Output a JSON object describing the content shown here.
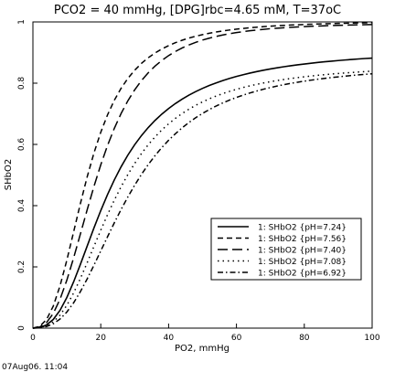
{
  "chart_data": {
    "type": "line",
    "title": "PCO2 = 40 mmHg, [DPG]rbc=4.65 mM, T=37oC",
    "xlabel": "PO2, mmHg",
    "ylabel": "SHbO2",
    "xlim": [
      0,
      100
    ],
    "ylim": [
      0,
      1
    ],
    "x_ticks": [
      "0",
      "20",
      "40",
      "60",
      "80",
      "100"
    ],
    "y_ticks": [
      "0",
      "0.2",
      "0.4",
      "0.6",
      "0.8",
      "1"
    ],
    "grid": false,
    "legend_position": "lower-right",
    "x": [
      0,
      2,
      4,
      6,
      8,
      10,
      12,
      14,
      16,
      18,
      20,
      22,
      24,
      26,
      28,
      30,
      32,
      34,
      36,
      38,
      40,
      42,
      44,
      46,
      48,
      50,
      52,
      54,
      56,
      58,
      60,
      62,
      64,
      66,
      68,
      70,
      72,
      74,
      76,
      78,
      80,
      82,
      84,
      86,
      88,
      90,
      92,
      94,
      96,
      98,
      100
    ],
    "series": [
      {
        "name": "1: SHbO2 {pH=7.24}",
        "dash": "solid",
        "values": [
          0.0,
          0.002,
          0.0103,
          0.0283,
          0.0583,
          0.1,
          0.1511,
          0.2083,
          0.2681,
          0.3274,
          0.3839,
          0.4364,
          0.4842,
          0.5271,
          0.5653,
          0.5991,
          0.6289,
          0.6552,
          0.6784,
          0.699,
          0.7172,
          0.7335,
          0.748,
          0.7609,
          0.7726,
          0.783,
          0.7924,
          0.8009,
          0.8086,
          0.8156,
          0.8219,
          0.8277,
          0.833,
          0.8379,
          0.8423,
          0.8464,
          0.8502,
          0.8537,
          0.8569,
          0.8599,
          0.8626,
          0.8652,
          0.8676,
          0.8699,
          0.8719,
          0.8739,
          0.8757,
          0.8775,
          0.8791,
          0.8806,
          0.882
        ]
      },
      {
        "name": "1: SHbO2 {pH=7.56}",
        "dash": "6,4",
        "values": [
          0.0,
          0.0057,
          0.0278,
          0.0719,
          0.1384,
          0.2219,
          0.3142,
          0.407,
          0.4942,
          0.5722,
          0.6397,
          0.6967,
          0.7442,
          0.7834,
          0.8157,
          0.8424,
          0.8646,
          0.8831,
          0.8985,
          0.9116,
          0.9227,
          0.9322,
          0.9403,
          0.9473,
          0.9533,
          0.9585,
          0.9631,
          0.9671,
          0.9706,
          0.9737,
          0.9764,
          0.9788,
          0.981,
          0.9829,
          0.9846,
          0.9861,
          0.9875,
          0.9887,
          0.9898,
          0.9908,
          0.9917,
          0.9925,
          0.9933,
          0.994,
          0.9946,
          0.9952,
          0.9957,
          0.9962,
          0.9966,
          0.997,
          0.9974
        ]
      },
      {
        "name": "1: SHbO2 {pH=7.40}",
        "dash": "11,5",
        "values": [
          0.0,
          0.0036,
          0.0179,
          0.0477,
          0.0947,
          0.1566,
          0.2293,
          0.3077,
          0.3868,
          0.4629,
          0.5333,
          0.5967,
          0.6526,
          0.7011,
          0.7427,
          0.7782,
          0.8084,
          0.834,
          0.8558,
          0.8743,
          0.8901,
          0.9035,
          0.915,
          0.9249,
          0.9334,
          0.9408,
          0.9471,
          0.9526,
          0.9574,
          0.9616,
          0.9652,
          0.9684,
          0.9712,
          0.9737,
          0.9759,
          0.9779,
          0.9796,
          0.9811,
          0.9825,
          0.9837,
          0.9848,
          0.9858,
          0.9867,
          0.9875,
          0.9882,
          0.9889,
          0.9895,
          0.9901,
          0.9906,
          0.991,
          0.9914
        ]
      },
      {
        "name": "1: SHbO2 {pH=7.08}",
        "dash": "1.5,4",
        "values": [
          0.0,
          0.0015,
          0.0074,
          0.0205,
          0.0426,
          0.0744,
          0.1149,
          0.1623,
          0.2138,
          0.2671,
          0.3198,
          0.3705,
          0.418,
          0.4619,
          0.5019,
          0.5379,
          0.5702,
          0.5989,
          0.6245,
          0.6472,
          0.6673,
          0.6851,
          0.701,
          0.7151,
          0.7277,
          0.7389,
          0.749,
          0.758,
          0.7661,
          0.7734,
          0.78,
          0.786,
          0.7914,
          0.7963,
          0.8008,
          0.8049,
          0.8087,
          0.8121,
          0.8153,
          0.8182,
          0.8209,
          0.8234,
          0.8257,
          0.8278,
          0.8298,
          0.8316,
          0.8334,
          0.835,
          0.8365,
          0.8379,
          0.8392
        ]
      },
      {
        "name": "1: SHbO2 {pH=6.92}",
        "dash": "6,3,1.5,3",
        "values": [
          0.0,
          0.001,
          0.0051,
          0.0142,
          0.0297,
          0.0526,
          0.0827,
          0.1193,
          0.1609,
          0.2057,
          0.252,
          0.2985,
          0.344,
          0.3876,
          0.4287,
          0.4669,
          0.5021,
          0.5342,
          0.5634,
          0.5898,
          0.6136,
          0.635,
          0.6543,
          0.6716,
          0.6872,
          0.7012,
          0.7139,
          0.7253,
          0.7356,
          0.745,
          0.7534,
          0.7611,
          0.7681,
          0.7745,
          0.7804,
          0.7857,
          0.7906,
          0.7951,
          0.7993,
          0.8031,
          0.8066,
          0.8099,
          0.8129,
          0.8157,
          0.8183,
          0.8207,
          0.823,
          0.8251,
          0.8271,
          0.8289,
          0.8306
        ]
      }
    ]
  },
  "footer": {
    "timestamp": "07Aug06. 11:04"
  }
}
